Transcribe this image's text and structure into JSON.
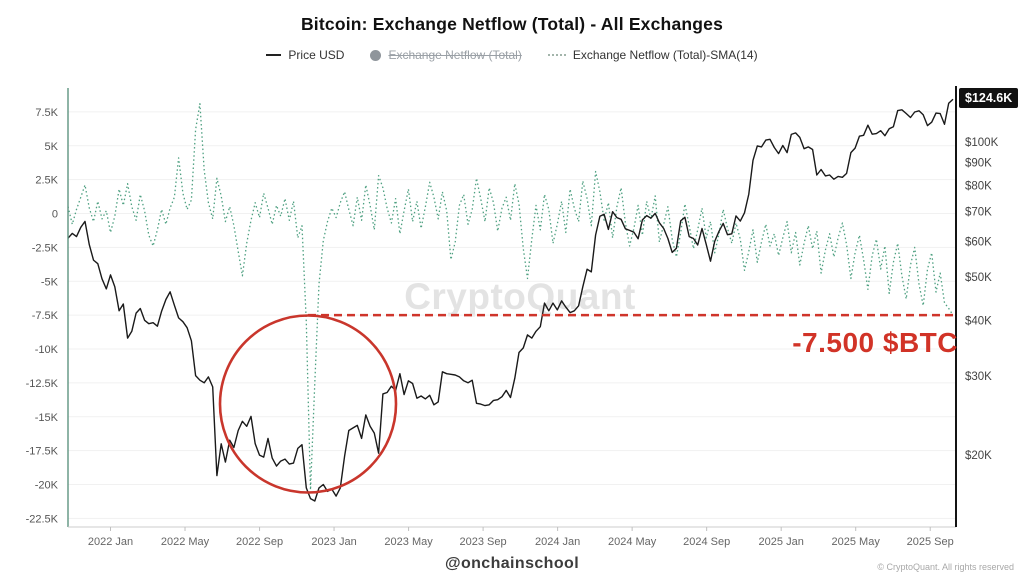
{
  "title": "Bitcoin: Exchange Netflow (Total) - All Exchanges",
  "legend": {
    "price": {
      "label": "Price USD",
      "color": "#222222",
      "enabled": true
    },
    "netflow": {
      "label": "Exchange Netflow (Total)",
      "color": "#8f959b",
      "enabled": false
    },
    "netflow_sma": {
      "label": "Exchange Netflow (Total)-SMA(14)",
      "color": "#4ea081",
      "enabled": true
    }
  },
  "watermark": "CryptoQuant",
  "price_badge": "$124.6K",
  "annotation": {
    "text": "-7.500 $BTC",
    "color": "#d13327"
  },
  "footer": {
    "handle": "@onchainschool",
    "copyright": "© CryptoQuant. All rights reserved"
  },
  "chart_data": {
    "type": "line",
    "x_interval": "weekly",
    "x_range": [
      "2021 Oct",
      "2025 Oct"
    ],
    "x_ticks": [
      {
        "label": "2022 Jan",
        "m": 0
      },
      {
        "label": "2022 May",
        "m": 4
      },
      {
        "label": "2022 Sep",
        "m": 8
      },
      {
        "label": "2023 Jan",
        "m": 12
      },
      {
        "label": "2023 May",
        "m": 16
      },
      {
        "label": "2023 Sep",
        "m": 20
      },
      {
        "label": "2024 Jan",
        "m": 24
      },
      {
        "label": "2024 May",
        "m": 28
      },
      {
        "label": "2024 Sep",
        "m": 32
      },
      {
        "label": "2025 Jan",
        "m": 36
      },
      {
        "label": "2025 May",
        "m": 40
      },
      {
        "label": "2025 Sep",
        "m": 44
      }
    ],
    "left_axis": {
      "unit": "BTC",
      "labels": [
        "7.5K",
        "5K",
        "2.5K",
        "0",
        "-2.5K",
        "-5K",
        "-7.5K",
        "-10K",
        "-12.5K",
        "-15K",
        "-17.5K",
        "-20K",
        "-22.5K"
      ],
      "tick_values": [
        7.5,
        5,
        2.5,
        0,
        -2.5,
        -5,
        -7.5,
        -10,
        -12.5,
        -15,
        -17.5,
        -20,
        -22.5
      ]
    },
    "right_axis": {
      "unit": "USD",
      "scale": "log",
      "labels": [
        "$100K",
        "$90K",
        "$80K",
        "$70K",
        "$60K",
        "$50K",
        "$40K",
        "$30K",
        "$20K"
      ],
      "tick_values": [
        100,
        90,
        80,
        70,
        60,
        50,
        40,
        30,
        20
      ],
      "last_price": 124.6
    },
    "red_line": {
      "value": -7.5,
      "color": "#cf352b",
      "style": "dashed"
    },
    "highlight_circle": {
      "around": "2022 Nov netflow dip",
      "color": "#c9362c"
    },
    "series": [
      {
        "name": "Price USD",
        "axis": "right",
        "style": "solid",
        "color": "#1a1a1a",
        "unit": "thousand USD",
        "values": [
          61,
          62.5,
          61.5,
          64.5,
          66.5,
          59,
          54.5,
          53.5,
          49.5,
          47,
          50.5,
          47.5,
          42,
          43.5,
          36.5,
          37.8,
          41.5,
          42.5,
          40,
          39.3,
          39.5,
          38.8,
          41.9,
          44.5,
          46.3,
          43.2,
          40.5,
          39.7,
          38.5,
          36,
          30.1,
          29.4,
          29,
          29.9,
          28.4,
          18,
          21.2,
          19.3,
          21.6,
          20.8,
          22.7,
          23.8,
          23.2,
          24.4,
          21.2,
          20,
          19.8,
          21.8,
          19.7,
          18.9,
          19.4,
          19.6,
          19.1,
          19.2,
          20.7,
          21.1,
          16.9,
          16,
          15.8,
          16.9,
          17.2,
          16.6,
          16.8,
          16.2,
          16.9,
          19.9,
          22.7,
          23,
          23.3,
          21.8,
          24.6,
          23.2,
          22.4,
          20.2,
          27.4,
          27.6,
          28.5,
          27.9,
          30.4,
          27.3,
          29.3,
          28.9,
          26.8,
          27.1,
          26.7,
          27.2,
          25.9,
          26.3,
          30.7,
          30.4,
          30.3,
          30.2,
          29.9,
          29.3,
          29,
          29.4,
          26.1,
          26,
          25.8,
          25.9,
          26.5,
          26.6,
          27,
          27.9,
          26.9,
          29.7,
          33.9,
          34.7,
          37.1,
          36.5,
          37.8,
          38.7,
          43.7,
          42,
          43.7,
          42.2,
          44.2,
          42.8,
          41.6,
          42,
          43.1,
          47.5,
          52,
          51.3,
          62,
          68.3,
          69,
          63.8,
          69.9,
          67.8,
          67.2,
          64,
          63.5,
          62.9,
          60.8,
          67,
          68.5,
          67.6,
          69.3,
          66,
          64.1,
          60.9,
          56.7,
          57.9,
          66.7,
          67.9,
          61.5,
          60.9,
          58.9,
          64.1,
          59.1,
          54.2,
          60,
          63.2,
          65.8,
          62.1,
          62.4,
          68.4,
          66.6,
          69.5,
          76.5,
          91,
          98,
          97.5,
          101,
          101.4,
          97.2,
          94.2,
          98.2,
          94.7,
          104,
          104.8,
          102.4,
          96.6,
          97.5,
          96.2,
          84.4,
          86.8,
          84,
          84.4,
          82.6,
          83.8,
          83.4,
          85.1,
          94.7,
          96.9,
          103,
          103.5,
          109,
          104.1,
          104.4,
          106,
          103.3,
          107.1,
          108.2,
          117.5,
          118,
          115.8,
          113.4,
          116.7,
          117.4,
          115,
          108.8,
          110.7,
          116,
          115.7,
          109.5,
          122,
          124.6
        ]
      },
      {
        "name": "Exchange Netflow (Total)-SMA(14)",
        "axis": "left",
        "style": "dotted",
        "color": "#4ea081",
        "unit": "thousand BTC",
        "values": [
          0.5,
          -0.8,
          0.3,
          1.2,
          2.1,
          0.4,
          -0.6,
          0.9,
          -0.4,
          0.2,
          -1.4,
          -0.2,
          1.8,
          0.6,
          2.2,
          0.5,
          -0.5,
          1.4,
          0.2,
          -1.6,
          -2.4,
          -1.2,
          0.3,
          -0.8,
          0.4,
          1.2,
          4.1,
          1.5,
          0.3,
          1,
          6.2,
          8.1,
          3.2,
          0.8,
          -0.4,
          2.6,
          1.3,
          -0.6,
          0.5,
          -0.9,
          -2.8,
          -4.6,
          -2.2,
          -0.5,
          0.8,
          -0.3,
          1.5,
          0.4,
          -0.8,
          0.6,
          -0.2,
          1.1,
          -0.5,
          0.9,
          -1.8,
          -0.9,
          -8,
          -20.4,
          -12.5,
          -5.2,
          -2,
          -0.6,
          0.4,
          -0.3,
          0.8,
          1.6,
          0.3,
          -0.9,
          1.2,
          -0.5,
          2.1,
          0.6,
          -1.2,
          2.8,
          1.9,
          0.4,
          -0.7,
          1.1,
          -1.5,
          0.2,
          1.8,
          -0.6,
          0.9,
          -1.1,
          0.5,
          2.3,
          1.2,
          -0.4,
          1.6,
          0.2,
          -3.4,
          -2.1,
          0.6,
          1.4,
          -0.8,
          0.3,
          2.6,
          1.1,
          -0.6,
          1.9,
          0.8,
          -1.3,
          0.4,
          1.2,
          -0.5,
          2.2,
          0.7,
          -2.6,
          -4.8,
          -1.9,
          0.6,
          -1.2,
          1.4,
          0.3,
          -2.2,
          -0.8,
          0.9,
          -1.4,
          1.8,
          0.4,
          -0.6,
          2.4,
          1.1,
          -0.9,
          3.1,
          1.6,
          -0.5,
          0.8,
          -1.8,
          0.5,
          1.9,
          -0.7,
          -2.4,
          -1.1,
          0.6,
          -1.6,
          0.9,
          -0.4,
          1.3,
          -2.1,
          -0.8,
          0.5,
          -1.9,
          -3.2,
          -1.4,
          0.7,
          -0.9,
          -2.6,
          -1.2,
          0.4,
          -1.8,
          -0.6,
          -2.9,
          -1.5,
          0.3,
          -1.1,
          -2.2,
          -0.7,
          -1.9,
          -4.2,
          -2.8,
          -1.2,
          -3.6,
          -2.1,
          -0.8,
          -2.4,
          -1.5,
          -3.1,
          -1.8,
          -0.6,
          -2.9,
          -1.4,
          -3.8,
          -2.2,
          -0.9,
          -2.6,
          -1.3,
          -4.4,
          -2.7,
          -1.5,
          -3.2,
          -1.8,
          -0.7,
          -2.3,
          -4.8,
          -2.9,
          -1.6,
          -3.4,
          -5.6,
          -3.1,
          -1.9,
          -4.1,
          -2.4,
          -5.9,
          -3.6,
          -2.2,
          -4.6,
          -6.3,
          -3.8,
          -2.5,
          -5.2,
          -6.8,
          -4.1,
          -2.9,
          -5.8,
          -4.4,
          -6.6,
          -7,
          -7.5
        ]
      }
    ]
  }
}
